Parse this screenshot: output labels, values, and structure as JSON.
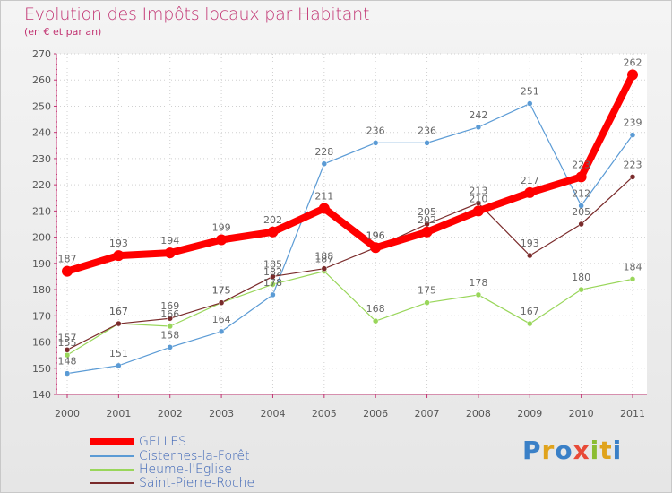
{
  "title": "Evolution des Impôts locaux par Habitant",
  "subtitle": "(en € et par an)",
  "logo": {
    "p": "P",
    "r": "r",
    "o": "o",
    "x": "x",
    "i": "i",
    "t": "t",
    "i2": "i"
  },
  "chart_data": {
    "type": "line",
    "categories": [
      "2000",
      "2001",
      "2002",
      "2003",
      "2004",
      "2005",
      "2006",
      "2007",
      "2008",
      "2009",
      "2010",
      "2011"
    ],
    "ylim": [
      140,
      270
    ],
    "yticks": [
      "140",
      "150",
      "160",
      "170",
      "180",
      "190",
      "200",
      "210",
      "220",
      "230",
      "240",
      "250",
      "260",
      "270"
    ],
    "series": [
      {
        "name": "GELLES",
        "color": "#ff0000",
        "values": [
          187,
          193,
          194,
          199,
          202,
          211,
          196,
          202,
          210,
          217,
          223,
          262
        ]
      },
      {
        "name": "Cisternes-la-Forêt",
        "color": "#5b9bd5",
        "values": [
          148,
          151,
          158,
          164,
          178,
          228,
          236,
          236,
          242,
          251,
          212,
          239
        ]
      },
      {
        "name": "Heume-l'Eglise",
        "color": "#99d65a",
        "values": [
          155,
          167,
          166,
          175,
          182,
          187,
          168,
          175,
          178,
          167,
          180,
          184
        ]
      },
      {
        "name": "Saint-Pierre-Roche",
        "color": "#7a2b2b",
        "values": [
          157,
          167,
          169,
          175,
          185,
          188,
          196,
          205,
          213,
          193,
          205,
          223
        ]
      }
    ],
    "labels": [
      {
        "series": 0,
        "text": [
          "187",
          "193",
          "194",
          "199",
          "202",
          "211",
          "196",
          "202",
          "210",
          "217",
          "223",
          "262"
        ]
      },
      {
        "series": 1,
        "text": [
          "148",
          "151",
          "158",
          "164",
          "178",
          "228",
          "236",
          "236",
          "242",
          "251",
          "212",
          "239"
        ]
      },
      {
        "series": 2,
        "text": [
          "155",
          "167",
          "166",
          "175",
          "182",
          "187",
          "168",
          "175",
          "178",
          "167",
          "180",
          "184"
        ]
      },
      {
        "series": 3,
        "text": [
          "157",
          "167",
          "169",
          "175",
          "185",
          "188",
          "196",
          "205",
          "213",
          "193",
          "205",
          "223"
        ]
      }
    ]
  }
}
